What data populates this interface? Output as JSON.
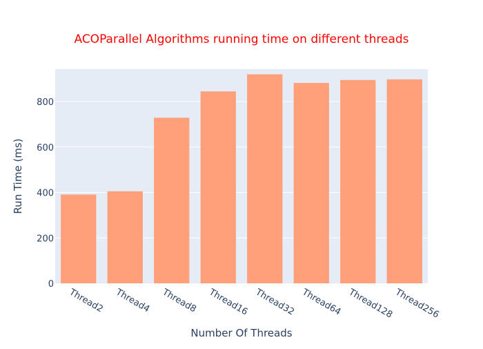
{
  "chart_data": {
    "type": "bar",
    "title": "ACOParallel Algorithms running time on different threads",
    "xlabel": "Number Of Threads",
    "ylabel": "Run Time (ms)",
    "categories": [
      "Thread2",
      "Thread4",
      "Thread8",
      "Thread16",
      "Thread32",
      "Thread64",
      "Thread128",
      "Thread256"
    ],
    "values": [
      391,
      405,
      729,
      845,
      920,
      882,
      895,
      898
    ],
    "ylim": [
      0,
      943
    ],
    "yticks": [
      0,
      200,
      400,
      600,
      800
    ],
    "grid": true,
    "legend": "none",
    "bar_color": "#ffa07a",
    "plot_bg": "#e5ecf6",
    "title_color": "#ff0000"
  }
}
